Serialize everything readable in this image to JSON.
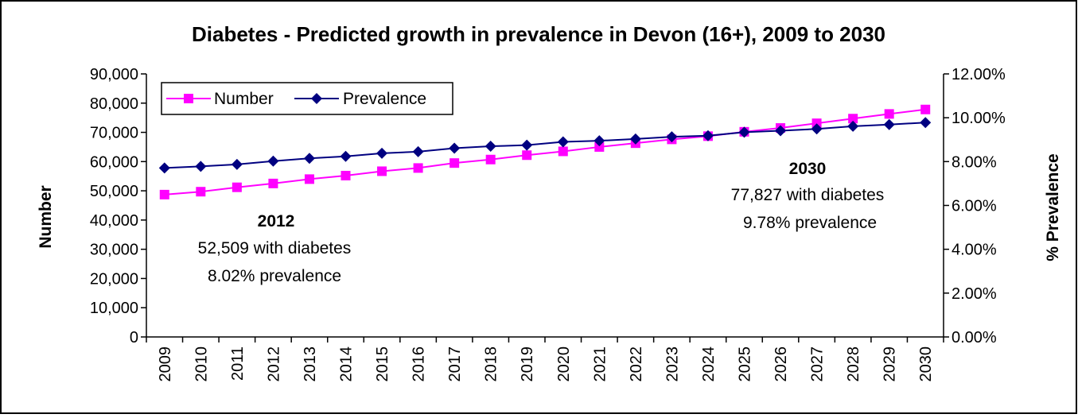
{
  "chart_data": {
    "type": "line",
    "title": "Diabetes - Predicted growth in prevalence in Devon (16+), 2009 to 2030",
    "ylabel": "Number",
    "y2label": "% Prevalence",
    "xlabel": "",
    "ylim": [
      0,
      90000
    ],
    "y2lim": [
      0,
      12
    ],
    "y_ticks": [
      "0",
      "10,000",
      "20,000",
      "30,000",
      "40,000",
      "50,000",
      "60,000",
      "70,000",
      "80,000",
      "90,000"
    ],
    "y2_ticks": [
      "0.00%",
      "2.00%",
      "4.00%",
      "6.00%",
      "8.00%",
      "10.00%",
      "12.00%"
    ],
    "categories": [
      "2009",
      "2010",
      "2011",
      "2012",
      "2013",
      "2014",
      "2015",
      "2016",
      "2017",
      "2018",
      "2019",
      "2020",
      "2021",
      "2022",
      "2023",
      "2024",
      "2025",
      "2026",
      "2027",
      "2028",
      "2029",
      "2030"
    ],
    "grid": false,
    "legend_position": "top-left",
    "series": [
      {
        "name": "Number",
        "axis": "left",
        "color": "#ff00ff",
        "marker": "square",
        "values": [
          48700,
          49700,
          51200,
          52509,
          54000,
          55200,
          56700,
          57800,
          59500,
          60700,
          62200,
          63500,
          65000,
          66300,
          67600,
          68700,
          70200,
          71500,
          73100,
          74700,
          76300,
          77827
        ]
      },
      {
        "name": "Prevalence",
        "axis": "right",
        "color": "#000080",
        "marker": "diamond",
        "values": [
          7.71,
          7.78,
          7.87,
          8.02,
          8.15,
          8.24,
          8.38,
          8.45,
          8.61,
          8.7,
          8.75,
          8.9,
          8.95,
          9.03,
          9.13,
          9.18,
          9.34,
          9.41,
          9.49,
          9.61,
          9.69,
          9.78
        ]
      }
    ],
    "annotations": [
      {
        "title": "2012",
        "line1": "52,509 with diabetes",
        "line2": "8.02% prevalence"
      },
      {
        "title": "2030",
        "line1": "77,827 with diabetes",
        "line2": "9.78% prevalence"
      }
    ]
  }
}
